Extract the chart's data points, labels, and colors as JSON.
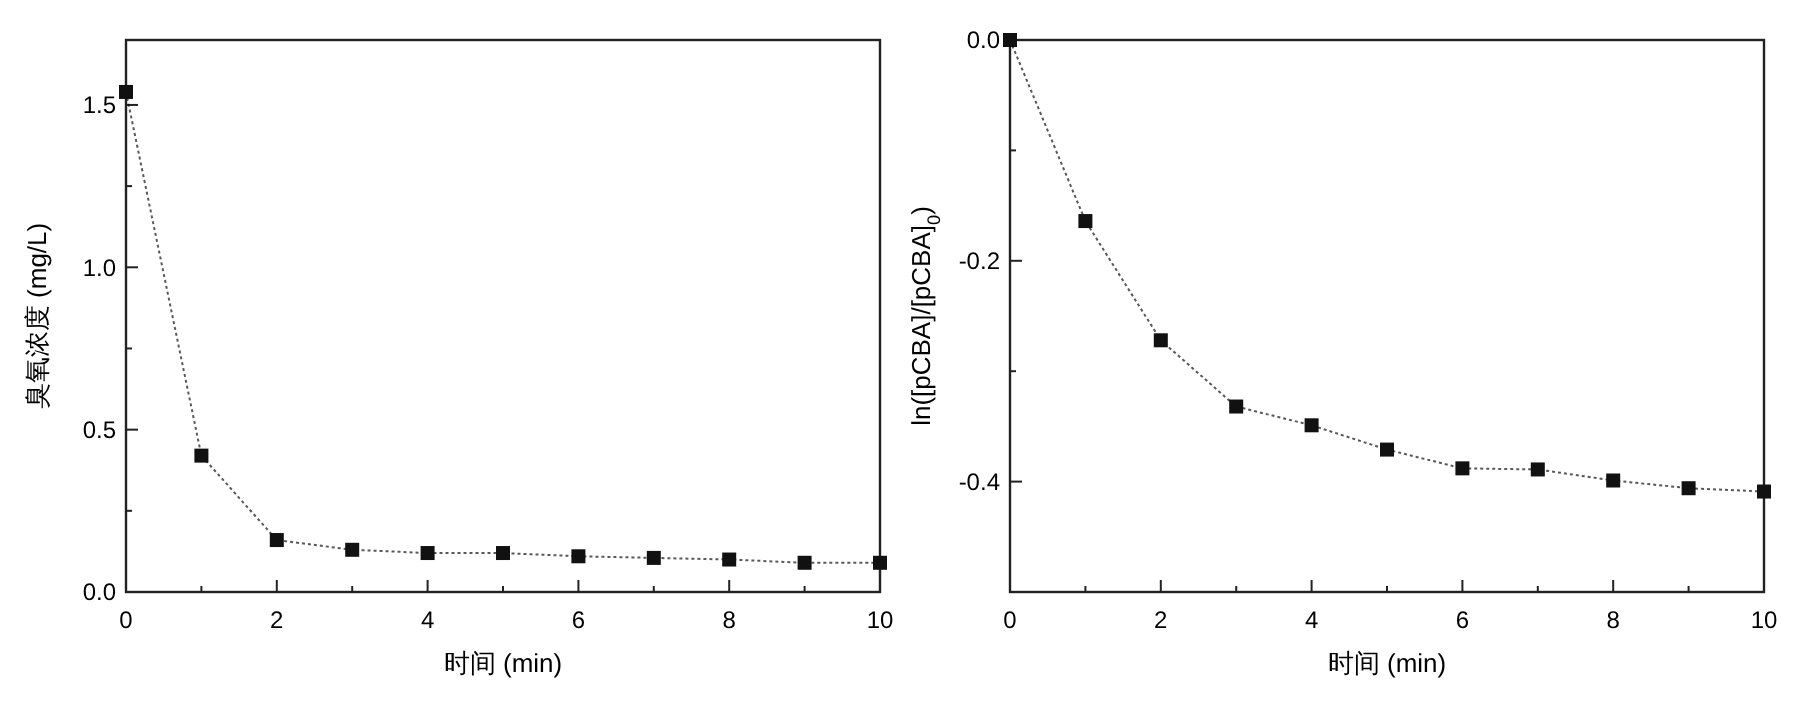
{
  "chart_data": [
    {
      "type": "line",
      "xlabel": "时间 (min)",
      "ylabel": "臭氧浓度 (mg/L)",
      "x": [
        0,
        1,
        2,
        3,
        4,
        5,
        6,
        7,
        8,
        9,
        10
      ],
      "series": [
        {
          "color": "#111111",
          "values": [
            1.54,
            0.42,
            0.16,
            0.13,
            0.12,
            0.12,
            0.11,
            0.105,
            0.1,
            0.09,
            0.09
          ]
        }
      ],
      "xlim": [
        0,
        10
      ],
      "xticks": [
        0,
        {
          "value": 1,
          "label": null
        },
        2,
        {
          "value": 3,
          "label": null
        },
        4,
        {
          "value": 5,
          "label": null
        },
        6,
        {
          "value": 7,
          "label": null
        },
        8,
        {
          "value": 9,
          "label": null
        },
        10
      ],
      "ylim": [
        0,
        1.7
      ],
      "yticks": [
        {
          "value": 0,
          "label": "0.0"
        },
        {
          "value": 0.25,
          "label": null
        },
        0.5,
        {
          "value": 0.75,
          "label": null
        },
        {
          "value": 1,
          "label": "1.0"
        },
        {
          "value": 1.25,
          "label": null
        },
        1.5
      ],
      "marker": "square",
      "line_style": "dotted",
      "grid": false
    },
    {
      "type": "line",
      "xlabel": "时间 (min)",
      "ylabel": "ln([pCBA]/[pCBA]$_{0}$)",
      "x": [
        0,
        1,
        2,
        3,
        4,
        5,
        6,
        7,
        8,
        9,
        10
      ],
      "series": [
        {
          "color": "#111111",
          "values": [
            0,
            -0.164,
            -0.272,
            -0.332,
            -0.349,
            -0.371,
            -0.388,
            -0.389,
            -0.399,
            -0.406,
            -0.409
          ]
        }
      ],
      "xlim": [
        0,
        10
      ],
      "xticks": [
        0,
        {
          "value": 1,
          "label": null
        },
        2,
        {
          "value": 3,
          "label": null
        },
        4,
        {
          "value": 5,
          "label": null
        },
        6,
        {
          "value": 7,
          "label": null
        },
        8,
        {
          "value": 9,
          "label": null
        },
        10
      ],
      "ylim": [
        -0.5,
        0
      ],
      "yticks": [
        {
          "value": -0.5,
          "label": null
        },
        -0.4,
        {
          "value": -0.3,
          "label": null
        },
        -0.2,
        {
          "value": -0.1,
          "label": null
        },
        {
          "value": 0,
          "label": "0.0"
        }
      ],
      "marker": "square",
      "line_style": "dotted",
      "grid": false
    }
  ]
}
